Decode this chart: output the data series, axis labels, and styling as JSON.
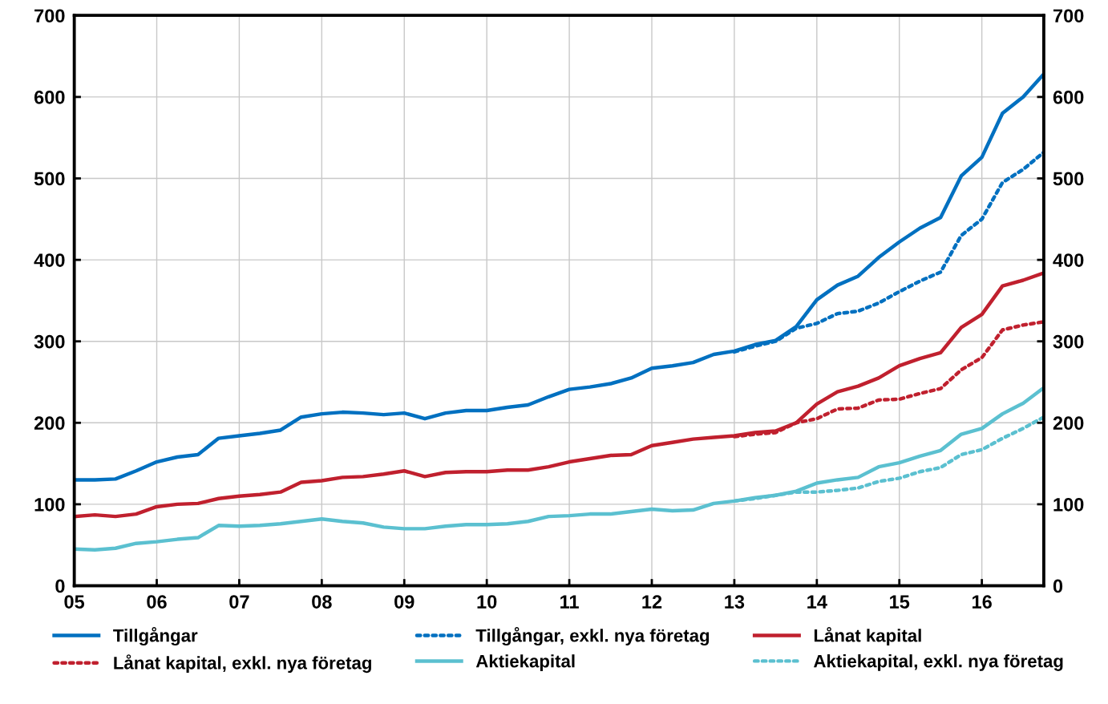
{
  "chart_data": {
    "type": "line",
    "x": [
      2005,
      2005.25,
      2005.5,
      2005.75,
      2006,
      2006.25,
      2006.5,
      2006.75,
      2007,
      2007.25,
      2007.5,
      2007.75,
      2008,
      2008.25,
      2008.5,
      2008.75,
      2009,
      2009.25,
      2009.5,
      2009.75,
      2010,
      2010.25,
      2010.5,
      2010.75,
      2011,
      2011.25,
      2011.5,
      2011.75,
      2012,
      2012.25,
      2012.5,
      2012.75,
      2013,
      2013.25,
      2013.5,
      2013.75,
      2014,
      2014.25,
      2014.5,
      2014.75,
      2015,
      2015.25,
      2015.5,
      2015.75,
      2016,
      2016.25,
      2016.5,
      2016.75
    ],
    "series": [
      {
        "name": "Tillgångar",
        "color": "#0070c0",
        "line_style": "solid",
        "values": [
          130,
          130,
          131,
          141,
          152,
          158,
          161,
          181,
          184,
          187,
          191,
          207,
          211,
          213,
          212,
          210,
          212,
          205,
          212,
          215,
          215,
          219,
          222,
          232,
          241,
          244,
          248,
          255,
          267,
          270,
          274,
          284,
          288,
          296,
          301,
          318,
          351,
          369,
          380,
          403,
          422,
          439,
          452,
          503,
          526,
          580,
          600,
          628
        ]
      },
      {
        "name": "Tillgångar, exkl. nya företag",
        "color": "#0070c0",
        "line_style": "dotted",
        "values": [
          null,
          null,
          null,
          null,
          null,
          null,
          null,
          null,
          null,
          null,
          null,
          null,
          null,
          null,
          null,
          null,
          null,
          null,
          null,
          null,
          null,
          null,
          null,
          null,
          null,
          null,
          null,
          null,
          null,
          null,
          null,
          null,
          287,
          294,
          300,
          316,
          322,
          334,
          337,
          347,
          361,
          374,
          385,
          430,
          450,
          495,
          511,
          532
        ]
      },
      {
        "name": "Lånat kapital",
        "color": "#c0202e",
        "line_style": "solid",
        "values": [
          85,
          87,
          85,
          88,
          97,
          100,
          101,
          107,
          110,
          112,
          115,
          127,
          129,
          133,
          134,
          137,
          141,
          134,
          139,
          140,
          140,
          142,
          142,
          146,
          152,
          156,
          160,
          161,
          172,
          176,
          180,
          182,
          184,
          188,
          190,
          200,
          223,
          238,
          245,
          255,
          270,
          279,
          286,
          317,
          333,
          368,
          375,
          384
        ]
      },
      {
        "name": "Lånat kapital, exkl. nya företag",
        "color": "#c0202e",
        "line_style": "dotted",
        "values": [
          null,
          null,
          null,
          null,
          null,
          null,
          null,
          null,
          null,
          null,
          null,
          null,
          null,
          null,
          null,
          null,
          null,
          null,
          null,
          null,
          null,
          null,
          null,
          null,
          null,
          null,
          null,
          null,
          null,
          null,
          null,
          null,
          183,
          186,
          188,
          200,
          205,
          217,
          218,
          228,
          229,
          236,
          242,
          265,
          280,
          314,
          320,
          324
        ]
      },
      {
        "name": "Aktiekapital",
        "color": "#5bc0d0",
        "line_style": "solid",
        "values": [
          45,
          44,
          46,
          52,
          54,
          57,
          59,
          74,
          73,
          74,
          76,
          79,
          82,
          79,
          77,
          72,
          70,
          70,
          73,
          75,
          75,
          76,
          79,
          85,
          86,
          88,
          88,
          91,
          94,
          92,
          93,
          101,
          104,
          108,
          111,
          116,
          126,
          130,
          133,
          146,
          151,
          159,
          166,
          186,
          193,
          211,
          224,
          243
        ]
      },
      {
        "name": "Aktiekapital, exkl. nya företag",
        "color": "#5bc0d0",
        "line_style": "dotted",
        "values": [
          null,
          null,
          null,
          null,
          null,
          null,
          null,
          null,
          null,
          null,
          null,
          null,
          null,
          null,
          null,
          null,
          null,
          null,
          null,
          null,
          null,
          null,
          null,
          null,
          null,
          null,
          null,
          null,
          null,
          null,
          null,
          null,
          104,
          107,
          111,
          115,
          115,
          117,
          120,
          128,
          132,
          140,
          145,
          161,
          167,
          181,
          193,
          207
        ]
      }
    ],
    "xlim": [
      2005,
      2016.75
    ],
    "xticks": [
      {
        "value": 2005,
        "label": "05"
      },
      {
        "value": 2006,
        "label": "06"
      },
      {
        "value": 2007,
        "label": "07"
      },
      {
        "value": 2008,
        "label": "08"
      },
      {
        "value": 2009,
        "label": "09"
      },
      {
        "value": 2010,
        "label": "10"
      },
      {
        "value": 2011,
        "label": "11"
      },
      {
        "value": 2012,
        "label": "12"
      },
      {
        "value": 2013,
        "label": "13"
      },
      {
        "value": 2014,
        "label": "14"
      },
      {
        "value": 2015,
        "label": "15"
      },
      {
        "value": 2016,
        "label": "16"
      }
    ],
    "ylim": [
      0,
      700
    ],
    "yticks": [
      0,
      100,
      200,
      300,
      400,
      500,
      600,
      700
    ],
    "y2lim": [
      0,
      700
    ],
    "y2ticks": [
      0,
      100,
      200,
      300,
      400,
      500,
      600,
      700
    ],
    "grid": true,
    "legend": "bottom",
    "marker": "none"
  }
}
